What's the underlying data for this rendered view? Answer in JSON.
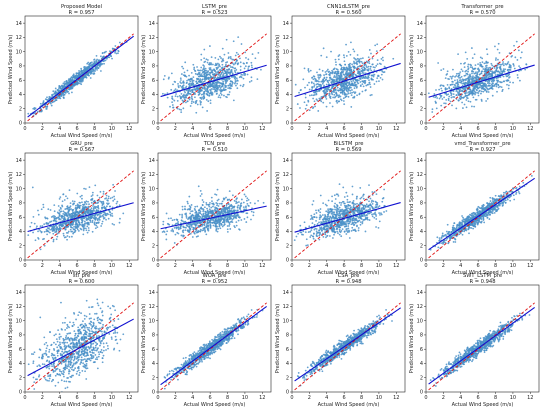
{
  "chart_data": [
    {
      "type": "scatter",
      "title": "Proposed Model",
      "r_label": "R = 0.957",
      "r": 0.957,
      "fit": {
        "intercept": 0.55,
        "slope": 0.93
      },
      "center": 6.0,
      "xlabel": "Actual Wind Speed (m/s)",
      "ylabel": "Predicted Wind Speed (m/s)",
      "xlim": [
        0,
        13
      ],
      "ylim": [
        0,
        15
      ],
      "xticks": [
        0,
        2,
        4,
        6,
        8,
        10,
        12
      ],
      "yticks": [
        0,
        2,
        4,
        6,
        8,
        10,
        12,
        14
      ]
    },
    {
      "type": "scatter",
      "title": "LSTM_pre",
      "r_label": "R = 0.523",
      "r": 0.523,
      "fit": {
        "intercept": 3.6,
        "slope": 0.36
      },
      "center": 6.0,
      "xlabel": "Actual Wind Speed (m/s)",
      "ylabel": "Predicted Wind Speed (m/s)",
      "xlim": [
        0,
        13
      ],
      "ylim": [
        0,
        15
      ],
      "xticks": [
        0,
        2,
        4,
        6,
        8,
        10,
        12
      ],
      "yticks": [
        0,
        2,
        4,
        6,
        8,
        10,
        12,
        14
      ]
    },
    {
      "type": "scatter",
      "title": "CNN1dLSTM_pre",
      "r_label": "R = 0.560",
      "r": 0.56,
      "fit": {
        "intercept": 3.6,
        "slope": 0.38
      },
      "center": 6.0,
      "xlabel": "Actual Wind Speed (m/s)",
      "ylabel": "Predicted Wind Speed (m/s)",
      "xlim": [
        0,
        13
      ],
      "ylim": [
        0,
        15
      ],
      "xticks": [
        0,
        2,
        4,
        6,
        8,
        10,
        12
      ],
      "yticks": [
        0,
        2,
        4,
        6,
        8,
        10,
        12,
        14
      ]
    },
    {
      "type": "scatter",
      "title": "Transformer_pre",
      "r_label": "R = 0.570",
      "r": 0.57,
      "fit": {
        "intercept": 3.5,
        "slope": 0.37
      },
      "center": 6.0,
      "xlabel": "Actual Wind Speed (m/s)",
      "ylabel": "Predicted Wind Speed (m/s)",
      "xlim": [
        0,
        13
      ],
      "ylim": [
        0,
        15
      ],
      "xticks": [
        0,
        2,
        4,
        6,
        8,
        10,
        12
      ],
      "yticks": [
        0,
        2,
        4,
        6,
        8,
        10,
        12,
        14
      ]
    },
    {
      "type": "scatter",
      "title": "GRU_pre",
      "r_label": "R = 0.567",
      "r": 0.567,
      "fit": {
        "intercept": 3.9,
        "slope": 0.33
      },
      "center": 6.0,
      "xlabel": "Actual Wind Speed (m/s)",
      "ylabel": "Predicted Wind Speed (m/s)",
      "xlim": [
        0,
        13
      ],
      "ylim": [
        0,
        15
      ],
      "xticks": [
        0,
        2,
        4,
        6,
        8,
        10,
        12
      ],
      "yticks": [
        0,
        2,
        4,
        6,
        8,
        10,
        12,
        14
      ]
    },
    {
      "type": "scatter",
      "title": "TCN_pre",
      "r_label": "R = 0.510",
      "r": 0.51,
      "fit": {
        "intercept": 4.3,
        "slope": 0.26
      },
      "center": 6.0,
      "xlabel": "Actual Wind Speed (m/s)",
      "ylabel": "Predicted Wind Speed (m/s)",
      "xlim": [
        0,
        13
      ],
      "ylim": [
        0,
        15
      ],
      "xticks": [
        0,
        2,
        4,
        6,
        8,
        10,
        12
      ],
      "yticks": [
        0,
        2,
        4,
        6,
        8,
        10,
        12,
        14
      ]
    },
    {
      "type": "scatter",
      "title": "BiLSTM_pre",
      "r_label": "R = 0.569",
      "r": 0.569,
      "fit": {
        "intercept": 3.8,
        "slope": 0.34
      },
      "center": 6.0,
      "xlabel": "Actual Wind Speed (m/s)",
      "ylabel": "Predicted Wind Speed (m/s)",
      "xlim": [
        0,
        13
      ],
      "ylim": [
        0,
        15
      ],
      "xticks": [
        0,
        2,
        4,
        6,
        8,
        10,
        12
      ],
      "yticks": [
        0,
        2,
        4,
        6,
        8,
        10,
        12,
        14
      ]
    },
    {
      "type": "scatter",
      "title": "vmd_Transformer_pre",
      "r_label": "R = 0.927",
      "r": 0.927,
      "fit": {
        "intercept": 1.2,
        "slope": 0.82
      },
      "center": 6.0,
      "xlabel": "Actual Wind Speed (m/s)",
      "ylabel": "Predicted Wind Speed (m/s)",
      "xlim": [
        0,
        13
      ],
      "ylim": [
        0,
        15
      ],
      "xticks": [
        0,
        2,
        4,
        6,
        8,
        10,
        12
      ],
      "yticks": [
        0,
        2,
        4,
        6,
        8,
        10,
        12,
        14
      ]
    },
    {
      "type": "scatter",
      "title": "stl_pre",
      "r_label": "R = 0.600",
      "r": 0.6,
      "fit": {
        "intercept": 2.1,
        "slope": 0.65
      },
      "center": 6.0,
      "xlabel": "Actual Wind Speed (m/s)",
      "ylabel": "Predicted Wind Speed (m/s)",
      "xlim": [
        0,
        13
      ],
      "ylim": [
        0,
        15
      ],
      "xticks": [
        0,
        2,
        4,
        6,
        8,
        10,
        12
      ],
      "yticks": [
        0,
        2,
        4,
        6,
        8,
        10,
        12,
        14
      ]
    },
    {
      "type": "scatter",
      "title": "WOA_pre",
      "r_label": "R = 0.952",
      "r": 0.952,
      "fit": {
        "intercept": 0.75,
        "slope": 0.9
      },
      "center": 6.0,
      "xlabel": "Actual Wind Speed (m/s)",
      "ylabel": "Predicted Wind Speed (m/s)",
      "xlim": [
        0,
        13
      ],
      "ylim": [
        0,
        15
      ],
      "xticks": [
        0,
        2,
        4,
        6,
        8,
        10,
        12
      ],
      "yticks": [
        0,
        2,
        4,
        6,
        8,
        10,
        12,
        14
      ]
    },
    {
      "type": "scatter",
      "title": "CSA_pre",
      "r_label": "R = 0.948",
      "r": 0.948,
      "fit": {
        "intercept": 1.3,
        "slope": 0.84
      },
      "center": 6.0,
      "xlabel": "Actual Wind Speed (m/s)",
      "ylabel": "Predicted Wind Speed (m/s)",
      "xlim": [
        0,
        13
      ],
      "ylim": [
        0,
        15
      ],
      "xticks": [
        0,
        2,
        4,
        6,
        8,
        10,
        12
      ],
      "yticks": [
        0,
        2,
        4,
        6,
        8,
        10,
        12,
        14
      ]
    },
    {
      "type": "scatter",
      "title": "SWT_LSTM_pre",
      "r_label": "R = 0.948",
      "r": 0.948,
      "fit": {
        "intercept": 0.85,
        "slope": 0.88
      },
      "center": 6.0,
      "xlabel": "Actual Wind Speed (m/s)",
      "ylabel": "Predicted Wind Speed (m/s)",
      "xlim": [
        0,
        13
      ],
      "ylim": [
        0,
        15
      ],
      "xticks": [
        0,
        2,
        4,
        6,
        8,
        10,
        12
      ],
      "yticks": [
        0,
        2,
        4,
        6,
        8,
        10,
        12,
        14
      ]
    }
  ],
  "colors": {
    "points": "#4a90c8",
    "fit": "#1010d0",
    "identity": "#e01010",
    "axis": "#222222"
  },
  "reference_line_style": "dashed"
}
